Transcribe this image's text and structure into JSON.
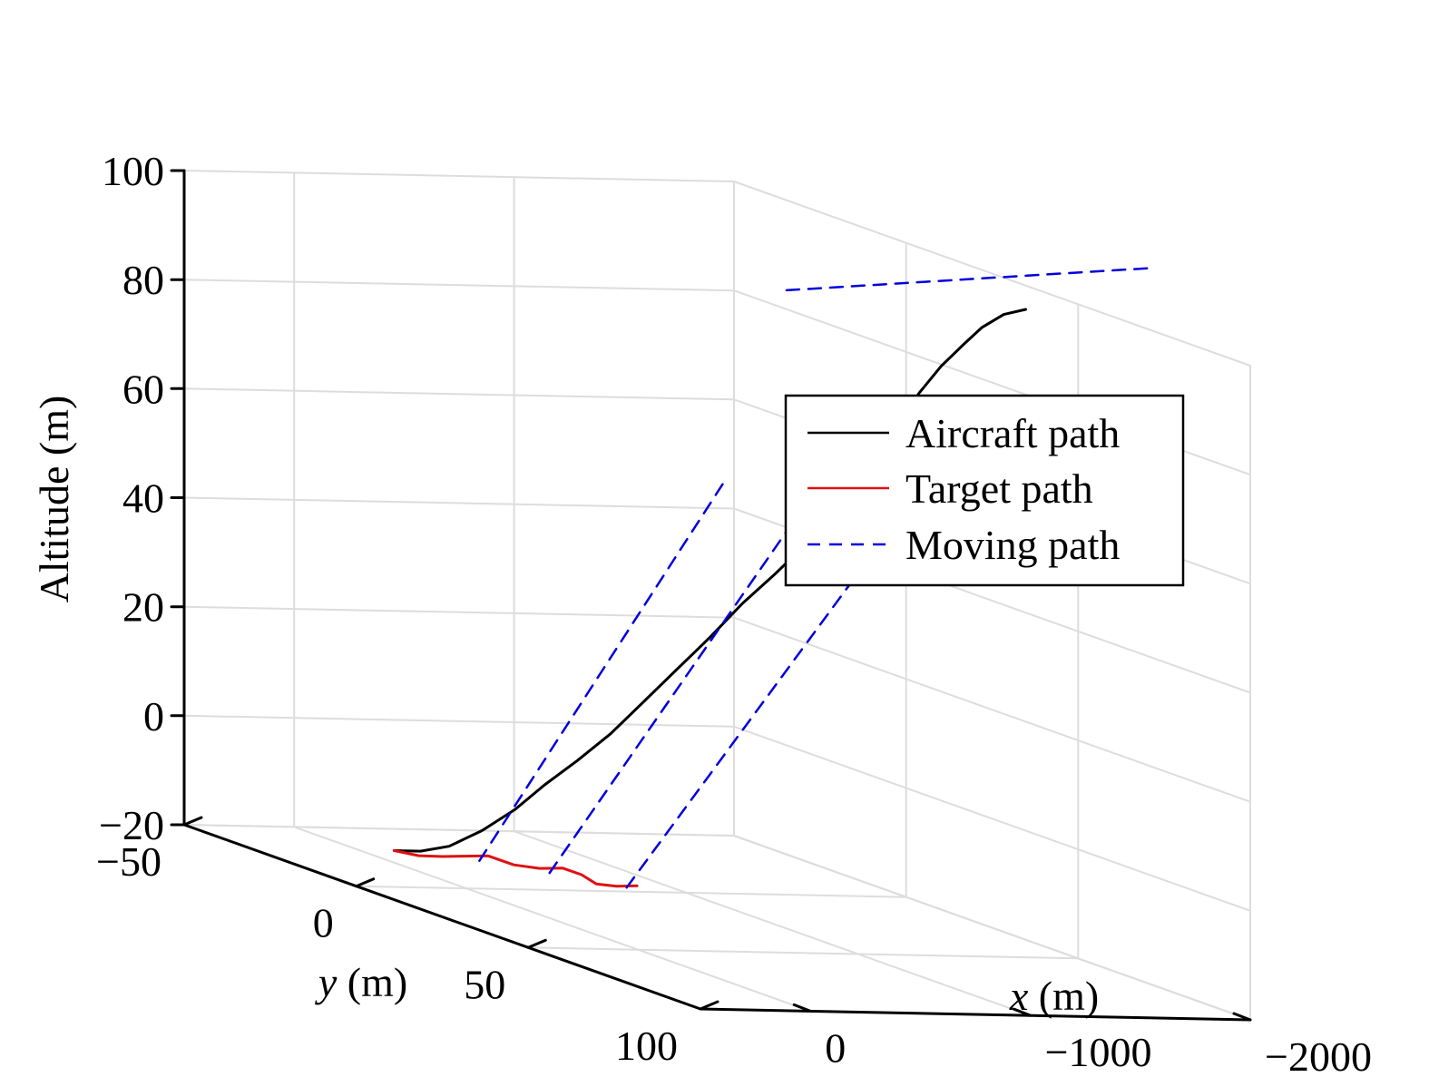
{
  "chart_data": {
    "type": "line",
    "projection": "3d",
    "zlabel": "Altitude (m)",
    "xlabel": {
      "var": "x",
      "unit": " (m)"
    },
    "ylabel": {
      "var": "y",
      "unit": " (m)"
    },
    "xlim": [
      -2000,
      500
    ],
    "ylim": [
      -50,
      100
    ],
    "zlim": [
      -20,
      100
    ],
    "xticks": [
      0,
      -1000,
      -2000
    ],
    "xtick_labels": [
      "0",
      "−1000",
      "−2000"
    ],
    "yticks": [
      -50,
      0,
      50,
      100
    ],
    "ytick_labels": [
      "−50",
      "0",
      "50",
      "100"
    ],
    "zticks": [
      -20,
      0,
      20,
      40,
      60,
      80,
      100
    ],
    "ztick_labels": [
      "−20",
      "0",
      "20",
      "40",
      "60",
      "80",
      "100"
    ],
    "grid": true,
    "legend": {
      "placement": "center-right",
      "entries": [
        "Aircraft path",
        "Target path",
        "Moving path"
      ]
    },
    "series": [
      {
        "name": "Aircraft path",
        "color": "#000000",
        "style": "solid",
        "points": [
          [
            500,
            11,
            -11
          ],
          [
            380,
            11,
            -11
          ],
          [
            250,
            11,
            -10
          ],
          [
            100,
            11,
            -7
          ],
          [
            -50,
            11,
            -3
          ],
          [
            -200,
            10,
            1.4
          ],
          [
            -350,
            10,
            6
          ],
          [
            -500,
            10,
            11
          ],
          [
            -650,
            10,
            17
          ],
          [
            -800,
            10,
            23
          ],
          [
            -950,
            10,
            29
          ],
          [
            -1100,
            10,
            35.4
          ],
          [
            -1250,
            10,
            41
          ],
          [
            -1400,
            10,
            47
          ],
          [
            -1550,
            9,
            53.5
          ],
          [
            -1650,
            9,
            58.5
          ],
          [
            -1750,
            8,
            63
          ],
          [
            -1850,
            8,
            69
          ],
          [
            -1950,
            7,
            74
          ],
          [
            -2050,
            7,
            79
          ],
          [
            -2150,
            7,
            83
          ],
          [
            -2250,
            6,
            86
          ],
          [
            -2350,
            6,
            88.5
          ],
          [
            -2450,
            6,
            89.5
          ]
        ]
      },
      {
        "name": "Target path",
        "color": "#e01010",
        "style": "solid",
        "points": [
          [
            500,
            11,
            -11
          ],
          [
            450,
            15,
            -11
          ],
          [
            420,
            20,
            -10
          ],
          [
            380,
            24,
            -9
          ],
          [
            340,
            28,
            -8
          ],
          [
            300,
            33,
            -8.5
          ],
          [
            260,
            38,
            -8
          ],
          [
            220,
            42,
            -7
          ],
          [
            180,
            45,
            -7.5
          ],
          [
            160,
            48,
            -8.5
          ],
          [
            130,
            52,
            -8
          ],
          [
            100,
            56,
            -7
          ]
        ]
      },
      {
        "name": "Moving path",
        "color": "#0000dd",
        "style": "dashed",
        "segments": [
          [
            [
              -1300,
              10,
              93
            ],
            [
              -2900,
              13,
              99
            ]
          ],
          [
            [
              300,
              23,
              -10
            ],
            [
              -1000,
              12,
              59
            ]
          ],
          [
            [
              200,
              37,
              -9
            ],
            [
              -1100,
              25,
              54
            ]
          ],
          [
            [
              100,
              53,
              -8
            ],
            [
              -1250,
              40,
              53
            ]
          ]
        ]
      }
    ]
  }
}
